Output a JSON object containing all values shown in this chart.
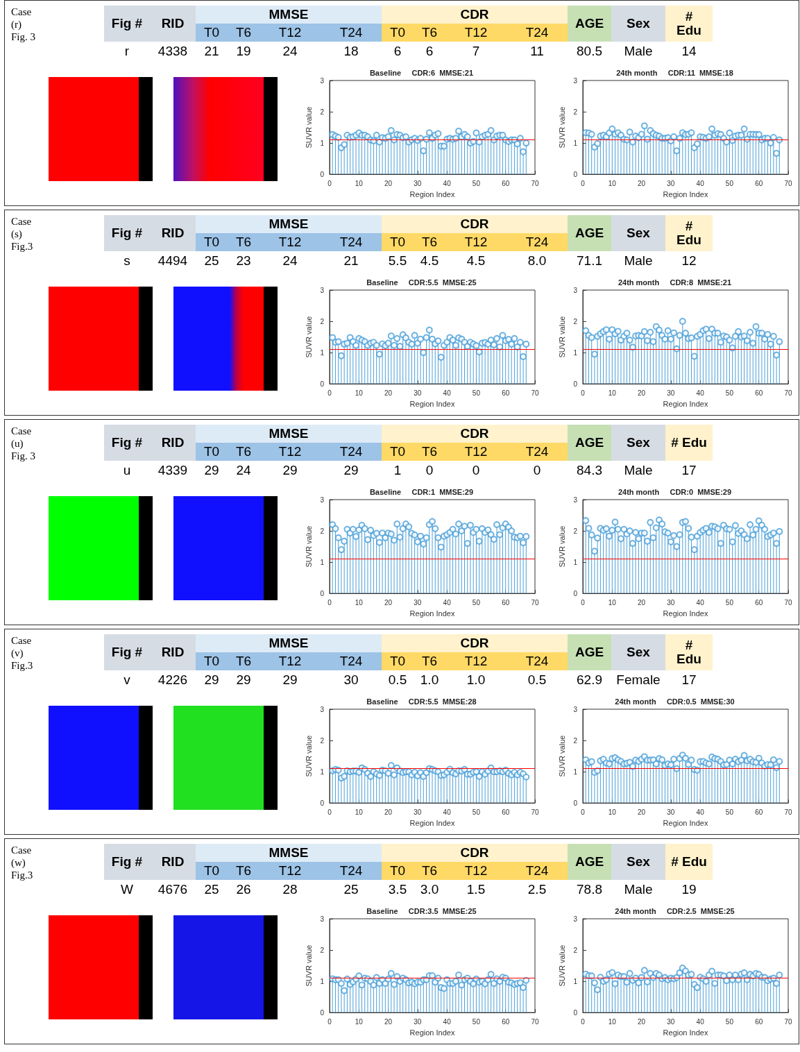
{
  "chart_data": [
    {
      "type": "other",
      "title": "Case\n(r)\nFig. 3",
      "annotations": [
        "Fig #",
        "RID",
        "MMSE",
        "CDR",
        "AGE",
        "Sex",
        "#\nEdu",
        "T0",
        "T6",
        "T12",
        "T24",
        "T0",
        "T6",
        "T12",
        "T24",
        "r",
        "4338",
        "21",
        "19",
        "24",
        "18",
        "6",
        "6",
        "7",
        "11",
        "80.5",
        "Male",
        "14"
      ],
      "colors": [
        "#d6dce4",
        "#d6dce4",
        "#ddebf7",
        "#fff2cc",
        "#c6e0b4",
        "#d6dce4",
        "#fff2cc",
        "#9dc3e6",
        "#9dc3e6",
        "#9dc3e6",
        "#9dc3e6",
        "#ffd966",
        "#ffd966",
        "#ffd966",
        "#ffd966"
      ]
    },
    {
      "type": "lollipop",
      "title": "Baseline     CDR:6  MMSE:21",
      "xlabel": "Region Index",
      "ylabel": "SUVR value",
      "color": "#4a9fd8",
      "marker": "circle",
      "xlim": [
        0,
        70
      ],
      "xticks": [
        0,
        10,
        20,
        30,
        40,
        50,
        60,
        70
      ],
      "ylim": [
        0,
        3
      ],
      "yticks": [
        0,
        1,
        2,
        3
      ],
      "ref_lines": [
        {
          "axis": "y",
          "value": 1.1,
          "color": "#ff0000"
        }
      ],
      "x": [
        1,
        2,
        3,
        4,
        5,
        6,
        7,
        8,
        9,
        10,
        11,
        12,
        13,
        14,
        15,
        16,
        17,
        18,
        19,
        20,
        21,
        22,
        23,
        24,
        25,
        26,
        27,
        28,
        29,
        30,
        31,
        32,
        33,
        34,
        35,
        36,
        37,
        38,
        39,
        40,
        41,
        42,
        43,
        44,
        45,
        46,
        47,
        48,
        49,
        50,
        51,
        52,
        53,
        54,
        55,
        56,
        57,
        58,
        59,
        60,
        61,
        62,
        63,
        64,
        65,
        66,
        67
      ],
      "values": [
        1.27,
        1.22,
        1.18,
        0.85,
        0.95,
        1.25,
        1.18,
        1.2,
        1.25,
        1.32,
        1.25,
        1.25,
        1.2,
        1.1,
        1.07,
        1.25,
        1.03,
        1.17,
        1.15,
        1.2,
        1.4,
        1.1,
        1.27,
        1.25,
        1.17,
        1.2,
        1.03,
        1.1,
        1.15,
        1.08,
        1.15,
        0.75,
        1.12,
        1.33,
        1.15,
        1.25,
        1.3,
        0.9,
        0.9,
        1.12,
        1.15,
        1.12,
        1.15,
        1.38,
        1.2,
        1.27,
        1.2,
        1.0,
        1.05,
        1.32,
        1.03,
        1.2,
        1.25,
        1.28,
        1.4,
        1.1,
        1.22,
        1.25,
        1.25,
        1.1,
        1.05,
        1.1,
        1.1,
        0.97,
        1.15,
        0.72,
        1.0
      ]
    },
    {
      "type": "lollipop",
      "title": "24th month     CDR:11  MMSE:18",
      "xlabel": "Region Index",
      "ylabel": "SUVR value",
      "color": "#4a9fd8",
      "marker": "circle",
      "xlim": [
        0,
        70
      ],
      "xticks": [
        0,
        10,
        20,
        30,
        40,
        50,
        60,
        70
      ],
      "ylim": [
        0,
        3
      ],
      "yticks": [
        0,
        1,
        2,
        3
      ],
      "ref_lines": [
        {
          "axis": "y",
          "value": 1.1,
          "color": "#ff0000"
        }
      ],
      "x": [
        1,
        2,
        3,
        4,
        5,
        6,
        7,
        8,
        9,
        10,
        11,
        12,
        13,
        14,
        15,
        16,
        17,
        18,
        19,
        20,
        21,
        22,
        23,
        24,
        25,
        26,
        27,
        28,
        29,
        30,
        31,
        32,
        33,
        34,
        35,
        36,
        37,
        38,
        39,
        40,
        41,
        42,
        43,
        44,
        45,
        46,
        47,
        48,
        49,
        50,
        51,
        52,
        53,
        54,
        55,
        56,
        57,
        58,
        59,
        60,
        61,
        62,
        63,
        64,
        65,
        66,
        67
      ],
      "values": [
        1.33,
        1.32,
        1.28,
        0.87,
        0.98,
        1.22,
        1.25,
        1.2,
        1.32,
        1.45,
        1.28,
        1.33,
        1.25,
        1.12,
        1.1,
        1.35,
        1.03,
        1.22,
        1.17,
        1.28,
        1.55,
        1.12,
        1.4,
        1.3,
        1.25,
        1.22,
        1.15,
        1.15,
        1.17,
        1.07,
        1.2,
        0.75,
        1.15,
        1.33,
        1.27,
        1.28,
        1.33,
        0.85,
        0.97,
        1.2,
        1.18,
        1.15,
        1.2,
        1.45,
        1.25,
        1.3,
        1.27,
        1.15,
        1.03,
        1.32,
        1.08,
        1.22,
        1.25,
        1.25,
        1.45,
        1.12,
        1.28,
        1.28,
        1.27,
        1.27,
        1.1,
        1.15,
        1.15,
        1.0,
        1.18,
        0.67,
        1.1
      ]
    },
    {
      "type": "other",
      "title": "Case\n(s)\nFig.3",
      "annotations": [
        "Fig #",
        "RID",
        "MMSE",
        "CDR",
        "AGE",
        "Sex",
        "#\nEdu",
        "T0",
        "T6",
        "T12",
        "T24",
        "T0",
        "T6",
        "T12",
        "T24",
        "s",
        "4494",
        "25",
        "23",
        "24",
        "21",
        "5.5",
        "4.5",
        "4.5",
        "8.0",
        "71.1",
        "Male",
        "12"
      ],
      "colors": [
        "#d6dce4",
        "#d6dce4",
        "#ddebf7",
        "#fff2cc",
        "#c6e0b4",
        "#d6dce4",
        "#fff2cc",
        "#9dc3e6",
        "#9dc3e6",
        "#9dc3e6",
        "#9dc3e6",
        "#ffd966",
        "#ffd966",
        "#ffd966",
        "#ffd966"
      ]
    },
    {
      "type": "lollipop",
      "title": "Baseline     CDR:5.5  MMSE:25",
      "xlabel": "Region Index",
      "ylabel": "SUVR value",
      "color": "#4a9fd8",
      "marker": "circle",
      "xlim": [
        0,
        70
      ],
      "xticks": [
        0,
        10,
        20,
        30,
        40,
        50,
        60,
        70
      ],
      "ylim": [
        0,
        3
      ],
      "yticks": [
        0,
        1,
        2,
        3
      ],
      "ref_lines": [
        {
          "axis": "y",
          "value": 1.1,
          "color": "#ff0000"
        }
      ],
      "x": [
        1,
        2,
        3,
        4,
        5,
        6,
        7,
        8,
        9,
        10,
        11,
        12,
        13,
        14,
        15,
        16,
        17,
        18,
        19,
        20,
        21,
        22,
        23,
        24,
        25,
        26,
        27,
        28,
        29,
        30,
        31,
        32,
        33,
        34,
        35,
        36,
        37,
        38,
        39,
        40,
        41,
        42,
        43,
        44,
        45,
        46,
        47,
        48,
        49,
        50,
        51,
        52,
        53,
        54,
        55,
        56,
        57,
        58,
        59,
        60,
        61,
        62,
        63,
        64,
        65,
        66,
        67
      ],
      "values": [
        1.48,
        1.33,
        1.35,
        0.9,
        1.27,
        1.3,
        1.48,
        1.35,
        1.23,
        1.45,
        1.4,
        1.35,
        1.23,
        1.3,
        1.33,
        1.23,
        0.95,
        1.28,
        1.22,
        1.3,
        1.53,
        1.23,
        1.45,
        1.2,
        1.57,
        1.47,
        1.33,
        1.27,
        1.55,
        1.3,
        1.43,
        1.0,
        1.48,
        1.72,
        1.43,
        1.28,
        1.37,
        0.85,
        1.23,
        1.33,
        1.48,
        1.4,
        1.23,
        1.47,
        1.43,
        1.33,
        1.2,
        1.33,
        1.27,
        1.22,
        1.02,
        1.3,
        1.32,
        1.27,
        1.4,
        1.25,
        1.45,
        1.18,
        1.55,
        1.38,
        1.42,
        1.27,
        1.45,
        1.18,
        1.33,
        0.87,
        1.27
      ]
    },
    {
      "type": "lollipop",
      "title": "24th month     CDR:8  MMSE:21",
      "xlabel": "Region Index",
      "ylabel": "SUVR value",
      "color": "#4a9fd8",
      "marker": "circle",
      "xlim": [
        0,
        70
      ],
      "xticks": [
        0,
        10,
        20,
        30,
        40,
        50,
        60,
        70
      ],
      "ylim": [
        0,
        3
      ],
      "yticks": [
        0,
        1,
        2,
        3
      ],
      "ref_lines": [
        {
          "axis": "y",
          "value": 1.1,
          "color": "#ff0000"
        }
      ],
      "x": [
        1,
        2,
        3,
        4,
        5,
        6,
        7,
        8,
        9,
        10,
        11,
        12,
        13,
        14,
        15,
        16,
        17,
        18,
        19,
        20,
        21,
        22,
        23,
        24,
        25,
        26,
        27,
        28,
        29,
        30,
        31,
        32,
        33,
        34,
        35,
        36,
        37,
        38,
        39,
        40,
        41,
        42,
        43,
        44,
        45,
        46,
        47,
        48,
        49,
        50,
        51,
        52,
        53,
        54,
        55,
        56,
        57,
        58,
        59,
        60,
        61,
        62,
        63,
        64,
        65,
        66,
        67
      ],
      "values": [
        1.7,
        1.55,
        1.48,
        0.95,
        1.52,
        1.6,
        1.67,
        1.73,
        1.43,
        1.73,
        1.6,
        1.68,
        1.4,
        1.52,
        1.62,
        1.4,
        1.17,
        1.53,
        1.55,
        1.53,
        1.67,
        1.38,
        1.65,
        1.35,
        1.83,
        1.72,
        1.55,
        1.43,
        1.7,
        1.43,
        1.63,
        1.12,
        1.55,
        2.0,
        1.62,
        1.45,
        1.47,
        0.88,
        1.52,
        1.58,
        1.7,
        1.75,
        1.45,
        1.75,
        1.62,
        1.62,
        1.33,
        1.53,
        1.5,
        1.4,
        1.15,
        1.52,
        1.67,
        1.5,
        1.53,
        1.38,
        1.65,
        1.3,
        1.83,
        1.62,
        1.62,
        1.43,
        1.58,
        1.27,
        1.52,
        0.92,
        1.35
      ]
    },
    {
      "type": "other",
      "title": "Case\n(u)\nFig. 3",
      "annotations": [
        "Fig #",
        "RID",
        "MMSE",
        "CDR",
        "AGE",
        "Sex",
        "# Edu",
        "T0",
        "T6",
        "T12",
        "T24",
        "T0",
        "T6",
        "T12",
        "T24",
        "u",
        "4339",
        "29",
        "24",
        "29",
        "29",
        "1",
        "0",
        "0",
        "0",
        "84.3",
        "Male",
        "17"
      ],
      "colors": [
        "#d6dce4",
        "#d6dce4",
        "#ddebf7",
        "#fff2cc",
        "#c6e0b4",
        "#d6dce4",
        "#fff2cc",
        "#9dc3e6",
        "#9dc3e6",
        "#9dc3e6",
        "#9dc3e6",
        "#ffd966",
        "#ffd966",
        "#ffd966",
        "#ffd966"
      ]
    },
    {
      "type": "lollipop",
      "title": "Baseline     CDR:1  MMSE:29",
      "xlabel": "Region Index",
      "ylabel": "SUVR value",
      "color": "#4a9fd8",
      "marker": "circle",
      "xlim": [
        0,
        70
      ],
      "xticks": [
        0,
        10,
        20,
        30,
        40,
        50,
        60,
        70
      ],
      "ylim": [
        0,
        3
      ],
      "yticks": [
        0,
        1,
        2,
        3
      ],
      "ref_lines": [
        {
          "axis": "y",
          "value": 1.1,
          "color": "#ff0000"
        }
      ],
      "x": [
        1,
        2,
        3,
        4,
        5,
        6,
        7,
        8,
        9,
        10,
        11,
        12,
        13,
        14,
        15,
        16,
        17,
        18,
        19,
        20,
        21,
        22,
        23,
        24,
        25,
        26,
        27,
        28,
        29,
        30,
        31,
        32,
        33,
        34,
        35,
        36,
        37,
        38,
        39,
        40,
        41,
        42,
        43,
        44,
        45,
        46,
        47,
        48,
        49,
        50,
        51,
        52,
        53,
        54,
        55,
        56,
        57,
        58,
        59,
        60,
        61,
        62,
        63,
        64,
        65,
        66,
        67
      ],
      "values": [
        2.2,
        2.07,
        1.78,
        1.4,
        1.67,
        2.05,
        1.93,
        2.05,
        1.82,
        2.03,
        2.18,
        2.07,
        1.72,
        2.02,
        1.85,
        1.92,
        1.63,
        1.93,
        1.78,
        1.93,
        1.9,
        1.7,
        2.22,
        1.8,
        2.07,
        2.22,
        2.13,
        1.92,
        1.87,
        1.65,
        1.83,
        1.58,
        1.78,
        2.2,
        2.3,
        2.07,
        1.78,
        1.48,
        1.83,
        1.88,
        1.95,
        2.05,
        1.9,
        2.22,
        2.0,
        2.15,
        1.6,
        2.18,
        1.95,
        2.05,
        1.67,
        2.07,
        1.95,
        2.03,
        1.88,
        1.73,
        2.2,
        1.88,
        2.1,
        2.22,
        2.12,
        2.0,
        1.8,
        1.78,
        1.83,
        1.62,
        1.82
      ]
    },
    {
      "type": "lollipop",
      "title": "24th month     CDR:0  MMSE:29",
      "xlabel": "Region Index",
      "ylabel": "SUVR value",
      "color": "#4a9fd8",
      "marker": "circle",
      "xlim": [
        0,
        70
      ],
      "xticks": [
        0,
        10,
        20,
        30,
        40,
        50,
        60,
        70
      ],
      "ylim": [
        0,
        3
      ],
      "yticks": [
        0,
        1,
        2,
        3
      ],
      "ref_lines": [
        {
          "axis": "y",
          "value": 1.1,
          "color": "#ff0000"
        }
      ],
      "x": [
        1,
        2,
        3,
        4,
        5,
        6,
        7,
        8,
        9,
        10,
        11,
        12,
        13,
        14,
        15,
        16,
        17,
        18,
        19,
        20,
        21,
        22,
        23,
        24,
        25,
        26,
        27,
        28,
        29,
        30,
        31,
        32,
        33,
        34,
        35,
        36,
        37,
        38,
        39,
        40,
        41,
        42,
        43,
        44,
        45,
        46,
        47,
        48,
        49,
        50,
        51,
        52,
        53,
        54,
        55,
        56,
        57,
        58,
        59,
        60,
        61,
        62,
        63,
        64,
        65,
        66,
        67
      ],
      "values": [
        2.33,
        2.08,
        1.87,
        1.35,
        1.77,
        2.08,
        2.02,
        2.07,
        1.83,
        2.02,
        2.28,
        2.05,
        1.75,
        2.05,
        1.9,
        2.0,
        1.6,
        1.95,
        1.75,
        1.93,
        1.93,
        1.67,
        2.27,
        1.78,
        2.1,
        2.35,
        2.22,
        1.97,
        1.93,
        1.65,
        1.85,
        1.5,
        1.88,
        2.27,
        2.3,
        2.08,
        1.8,
        1.4,
        1.83,
        1.95,
        2.02,
        2.08,
        1.95,
        2.15,
        2.13,
        2.07,
        1.6,
        2.18,
        2.07,
        2.05,
        1.65,
        2.17,
        1.92,
        2.0,
        1.88,
        1.75,
        2.2,
        1.87,
        2.05,
        2.32,
        2.18,
        2.05,
        1.82,
        1.87,
        1.93,
        1.6,
        1.98
      ]
    },
    {
      "type": "other",
      "title": "Case\n(v)\nFig.3",
      "annotations": [
        "Fig #",
        "RID",
        "MMSE",
        "CDR",
        "AGE",
        "Sex",
        "#\nEdu",
        "T0",
        "T6",
        "T12",
        "T24",
        "T0",
        "T6",
        "T12",
        "T24",
        "v",
        "4226",
        "29",
        "29",
        "29",
        "30",
        "0.5",
        "1.0",
        "1.0",
        "0.5",
        "62.9",
        "Female",
        "17"
      ],
      "colors": [
        "#d6dce4",
        "#d6dce4",
        "#ddebf7",
        "#fff2cc",
        "#c6e0b4",
        "#d6dce4",
        "#fff2cc",
        "#9dc3e6",
        "#9dc3e6",
        "#9dc3e6",
        "#9dc3e6",
        "#ffd966",
        "#ffd966",
        "#ffd966",
        "#ffd966"
      ]
    },
    {
      "type": "lollipop",
      "title": "Baseline     CDR:5.5  MMSE:28",
      "xlabel": "Region Index",
      "ylabel": "SUVR value",
      "color": "#4a9fd8",
      "marker": "circle",
      "xlim": [
        0,
        70
      ],
      "xticks": [
        0,
        10,
        20,
        30,
        40,
        50,
        60,
        70
      ],
      "ylim": [
        0,
        3
      ],
      "yticks": [
        0,
        1,
        2,
        3
      ],
      "ref_lines": [
        {
          "axis": "y",
          "value": 1.1,
          "color": "#ff0000"
        }
      ],
      "x": [
        1,
        2,
        3,
        4,
        5,
        6,
        7,
        8,
        9,
        10,
        11,
        12,
        13,
        14,
        15,
        16,
        17,
        18,
        19,
        20,
        21,
        22,
        23,
        24,
        25,
        26,
        27,
        28,
        29,
        30,
        31,
        32,
        33,
        34,
        35,
        36,
        37,
        38,
        39,
        40,
        41,
        42,
        43,
        44,
        45,
        46,
        47,
        48,
        49,
        50,
        51,
        52,
        53,
        54,
        55,
        56,
        57,
        58,
        59,
        60,
        61,
        62,
        63,
        64,
        65,
        66,
        67
      ],
      "values": [
        1.03,
        1.07,
        1.05,
        0.8,
        0.85,
        1.03,
        1.0,
        1.02,
        1.02,
        0.98,
        1.12,
        1.07,
        0.95,
        0.85,
        1.0,
        0.93,
        0.88,
        1.05,
        1.03,
        0.95,
        1.2,
        0.9,
        1.12,
        1.02,
        0.97,
        1.0,
        1.0,
        0.9,
        0.98,
        0.87,
        0.97,
        0.85,
        0.97,
        1.1,
        1.07,
        1.03,
        1.0,
        0.88,
        0.9,
        0.98,
        1.08,
        0.97,
        0.93,
        1.03,
        1.02,
        1.07,
        0.92,
        0.92,
        0.98,
        1.0,
        0.85,
        1.0,
        0.92,
        1.02,
        1.12,
        1.0,
        1.0,
        1.03,
        1.0,
        1.05,
        0.95,
        0.9,
        0.98,
        0.9,
        0.98,
        0.93,
        0.83
      ]
    },
    {
      "type": "lollipop",
      "title": "24th month     CDR:0.5  MMSE:30",
      "xlabel": "Region Index",
      "ylabel": "SUVR value",
      "color": "#4a9fd8",
      "marker": "circle",
      "xlim": [
        0,
        70
      ],
      "xticks": [
        0,
        10,
        20,
        30,
        40,
        50,
        60,
        70
      ],
      "ylim": [
        0,
        3
      ],
      "yticks": [
        0,
        1,
        2,
        3
      ],
      "ref_lines": [
        {
          "axis": "y",
          "value": 1.1,
          "color": "#ff0000"
        }
      ],
      "x": [
        1,
        2,
        3,
        4,
        5,
        6,
        7,
        8,
        9,
        10,
        11,
        12,
        13,
        14,
        15,
        16,
        17,
        18,
        19,
        20,
        21,
        22,
        23,
        24,
        25,
        26,
        27,
        28,
        29,
        30,
        31,
        32,
        33,
        34,
        35,
        36,
        37,
        38,
        39,
        40,
        41,
        42,
        43,
        44,
        45,
        46,
        47,
        48,
        49,
        50,
        51,
        52,
        53,
        54,
        55,
        56,
        57,
        58,
        59,
        60,
        61,
        62,
        63,
        64,
        65,
        66,
        67
      ],
      "values": [
        1.38,
        1.28,
        1.32,
        0.98,
        1.03,
        1.35,
        1.4,
        1.28,
        1.25,
        1.42,
        1.45,
        1.38,
        1.33,
        1.25,
        1.27,
        1.3,
        1.17,
        1.37,
        1.33,
        1.4,
        1.48,
        1.37,
        1.37,
        1.38,
        1.25,
        1.42,
        1.38,
        1.2,
        1.25,
        1.22,
        1.4,
        1.1,
        1.42,
        1.53,
        1.43,
        1.23,
        1.37,
        1.07,
        1.05,
        1.32,
        1.33,
        1.28,
        1.25,
        1.47,
        1.42,
        1.4,
        1.33,
        1.22,
        1.23,
        1.37,
        1.25,
        1.4,
        1.32,
        1.37,
        1.52,
        1.35,
        1.4,
        1.32,
        1.3,
        1.43,
        1.28,
        1.18,
        1.23,
        1.22,
        1.38,
        1.13,
        1.33
      ]
    },
    {
      "type": "other",
      "title": "Case\n(w)\nFig.3",
      "annotations": [
        "Fig #",
        "RID",
        "MMSE",
        "CDR",
        "AGE",
        "Sex",
        "# Edu",
        "T0",
        "T6",
        "T12",
        "T24",
        "T0",
        "T6",
        "T12",
        "T24",
        "W",
        "4676",
        "25",
        "26",
        "28",
        "25",
        "3.5",
        "3.0",
        "1.5",
        "2.5",
        "78.8",
        "Male",
        "19"
      ],
      "colors": [
        "#d6dce4",
        "#d6dce4",
        "#ddebf7",
        "#fff2cc",
        "#c6e0b4",
        "#d6dce4",
        "#fff2cc",
        "#9dc3e6",
        "#9dc3e6",
        "#9dc3e6",
        "#9dc3e6",
        "#ffd966",
        "#ffd966",
        "#ffd966",
        "#ffd966"
      ]
    },
    {
      "type": "lollipop",
      "title": "Baseline     CDR:3.5  MMSE:25",
      "xlabel": "Region Index",
      "ylabel": "SUVR value",
      "color": "#4a9fd8",
      "marker": "circle",
      "xlim": [
        0,
        70
      ],
      "xticks": [
        0,
        10,
        20,
        30,
        40,
        50,
        60,
        70
      ],
      "ylim": [
        0,
        3
      ],
      "yticks": [
        0,
        1,
        2,
        3
      ],
      "ref_lines": [
        {
          "axis": "y",
          "value": 1.1,
          "color": "#ff0000"
        }
      ],
      "x": [
        1,
        2,
        3,
        4,
        5,
        6,
        7,
        8,
        9,
        10,
        11,
        12,
        13,
        14,
        15,
        16,
        17,
        18,
        19,
        20,
        21,
        22,
        23,
        24,
        25,
        26,
        27,
        28,
        29,
        30,
        31,
        32,
        33,
        34,
        35,
        36,
        37,
        38,
        39,
        40,
        41,
        42,
        43,
        44,
        45,
        46,
        47,
        48,
        49,
        50,
        51,
        52,
        53,
        54,
        55,
        56,
        57,
        58,
        59,
        60,
        61,
        62,
        63,
        64,
        65,
        66,
        67
      ],
      "values": [
        1.08,
        1.05,
        1.05,
        0.93,
        0.7,
        1.07,
        0.9,
        0.98,
        1.07,
        1.17,
        0.88,
        1.1,
        1.08,
        1.0,
        0.88,
        1.12,
        0.93,
        1.05,
        0.93,
        1.07,
        1.25,
        0.9,
        1.15,
        1.0,
        1.1,
        1.05,
        0.95,
        0.97,
        0.92,
        0.97,
        0.97,
        1.05,
        1.05,
        1.18,
        1.18,
        0.97,
        1.1,
        0.8,
        0.77,
        1.05,
        0.93,
        0.93,
        1.0,
        1.2,
        0.88,
        1.05,
        1.1,
        1.0,
        0.92,
        1.07,
        0.97,
        1.0,
        0.92,
        1.05,
        1.22,
        0.93,
        1.08,
        1.0,
        1.13,
        1.1,
        0.97,
        0.95,
        0.9,
        0.93,
        0.95,
        0.8,
        1.03
      ]
    },
    {
      "type": "lollipop",
      "title": "24th month     CDR:2.5  MMSE:25",
      "xlabel": "Region Index",
      "ylabel": "SUVR value",
      "color": "#4a9fd8",
      "marker": "circle",
      "xlim": [
        0,
        70
      ],
      "xticks": [
        0,
        10,
        20,
        30,
        40,
        50,
        60,
        70
      ],
      "ylim": [
        0,
        3
      ],
      "yticks": [
        0,
        1,
        2,
        3
      ],
      "ref_lines": [
        {
          "axis": "y",
          "value": 1.1,
          "color": "#ff0000"
        }
      ],
      "x": [
        1,
        2,
        3,
        4,
        5,
        6,
        7,
        8,
        9,
        10,
        11,
        12,
        13,
        14,
        15,
        16,
        17,
        18,
        19,
        20,
        21,
        22,
        23,
        24,
        25,
        26,
        27,
        28,
        29,
        30,
        31,
        32,
        33,
        34,
        35,
        36,
        37,
        38,
        39,
        40,
        41,
        42,
        43,
        44,
        45,
        46,
        47,
        48,
        49,
        50,
        51,
        52,
        53,
        54,
        55,
        56,
        57,
        58,
        59,
        60,
        61,
        62,
        63,
        64,
        65,
        66,
        67
      ],
      "values": [
        1.23,
        1.18,
        1.17,
        0.95,
        0.73,
        1.13,
        1.0,
        1.05,
        1.23,
        1.28,
        0.92,
        1.2,
        1.15,
        1.15,
        0.97,
        1.25,
        1.03,
        1.1,
        0.95,
        1.12,
        1.35,
        0.98,
        1.25,
        1.12,
        1.25,
        1.2,
        1.08,
        1.12,
        1.05,
        1.1,
        1.08,
        1.12,
        1.27,
        1.42,
        1.33,
        1.2,
        1.22,
        0.9,
        0.8,
        1.13,
        1.08,
        1.0,
        1.2,
        1.32,
        0.93,
        1.2,
        1.2,
        1.17,
        1.02,
        1.2,
        1.05,
        1.2,
        1.05,
        1.23,
        1.27,
        1.05,
        1.22,
        1.17,
        1.25,
        1.22,
        1.13,
        1.12,
        1.02,
        1.07,
        1.1,
        0.93,
        1.2
      ]
    }
  ]
}
